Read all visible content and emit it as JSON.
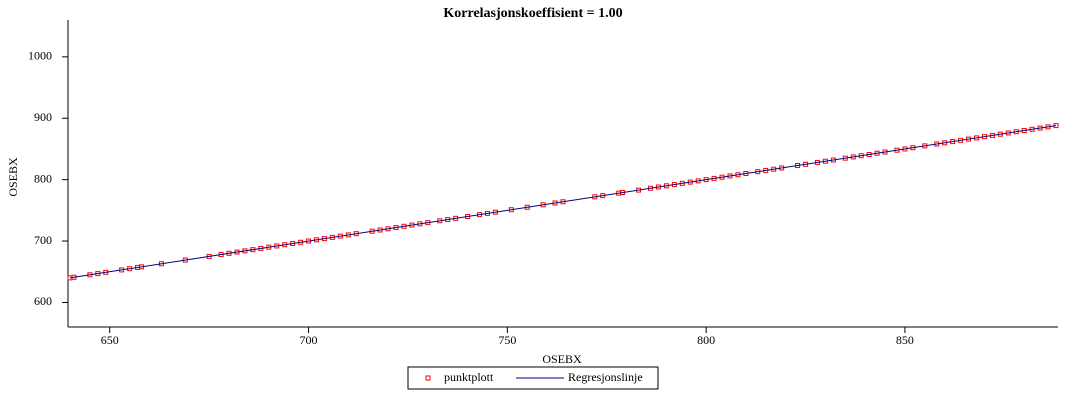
{
  "chart_data": {
    "type": "scatter",
    "title": "Korrelasjonskoeffisient =  1.00",
    "x_label": "OSEBX",
    "y_label": "OSEBX",
    "xlim": [
      639.5,
      888.5
    ],
    "ylim": [
      560,
      1060
    ],
    "xticks": [
      650,
      700,
      750,
      800,
      850
    ],
    "yticks": [
      600,
      700,
      800,
      900,
      1000
    ],
    "legend": "bottom",
    "series": [
      {
        "name": "punktplott",
        "color": "#ff0000",
        "style": "marker",
        "x": [
          640,
          641,
          645,
          647,
          649,
          653,
          655,
          657,
          658,
          663,
          669,
          675,
          678,
          680,
          682,
          684,
          686,
          688,
          690,
          692,
          694,
          696,
          698,
          700,
          702,
          704,
          706,
          708,
          710,
          712,
          716,
          718,
          720,
          722,
          724,
          726,
          728,
          730,
          733,
          735,
          737,
          740,
          743,
          745,
          747,
          751,
          755,
          759,
          762,
          764,
          772,
          774,
          778,
          779,
          783,
          786,
          788,
          790,
          792,
          794,
          796,
          798,
          800,
          802,
          804,
          806,
          808,
          810,
          813,
          815,
          817,
          819,
          823,
          825,
          828,
          830,
          832,
          835,
          837,
          839,
          841,
          843,
          845,
          848,
          850,
          852,
          855,
          858,
          860,
          862,
          864,
          866,
          868,
          870,
          872,
          874,
          876,
          878,
          880,
          882,
          884,
          886,
          888
        ],
        "values": [
          640,
          641,
          645,
          647,
          649,
          653,
          655,
          657,
          658,
          663,
          669,
          675,
          678,
          680,
          682,
          684,
          686,
          688,
          690,
          692,
          694,
          696,
          698,
          700,
          702,
          704,
          706,
          708,
          710,
          712,
          716,
          718,
          720,
          722,
          724,
          726,
          728,
          730,
          733,
          735,
          737,
          740,
          743,
          745,
          747,
          751,
          755,
          759,
          762,
          764,
          772,
          774,
          778,
          779,
          783,
          786,
          788,
          790,
          792,
          794,
          796,
          798,
          800,
          802,
          804,
          806,
          808,
          810,
          813,
          815,
          817,
          819,
          823,
          825,
          828,
          830,
          832,
          835,
          837,
          839,
          841,
          843,
          845,
          848,
          850,
          852,
          855,
          858,
          860,
          862,
          864,
          866,
          868,
          870,
          872,
          874,
          876,
          878,
          880,
          882,
          884,
          886,
          888
        ]
      },
      {
        "name": "Regresjonslinje",
        "color": "#000080",
        "style": "line",
        "x": [
          640,
          888
        ],
        "values": [
          640,
          888
        ]
      }
    ]
  }
}
